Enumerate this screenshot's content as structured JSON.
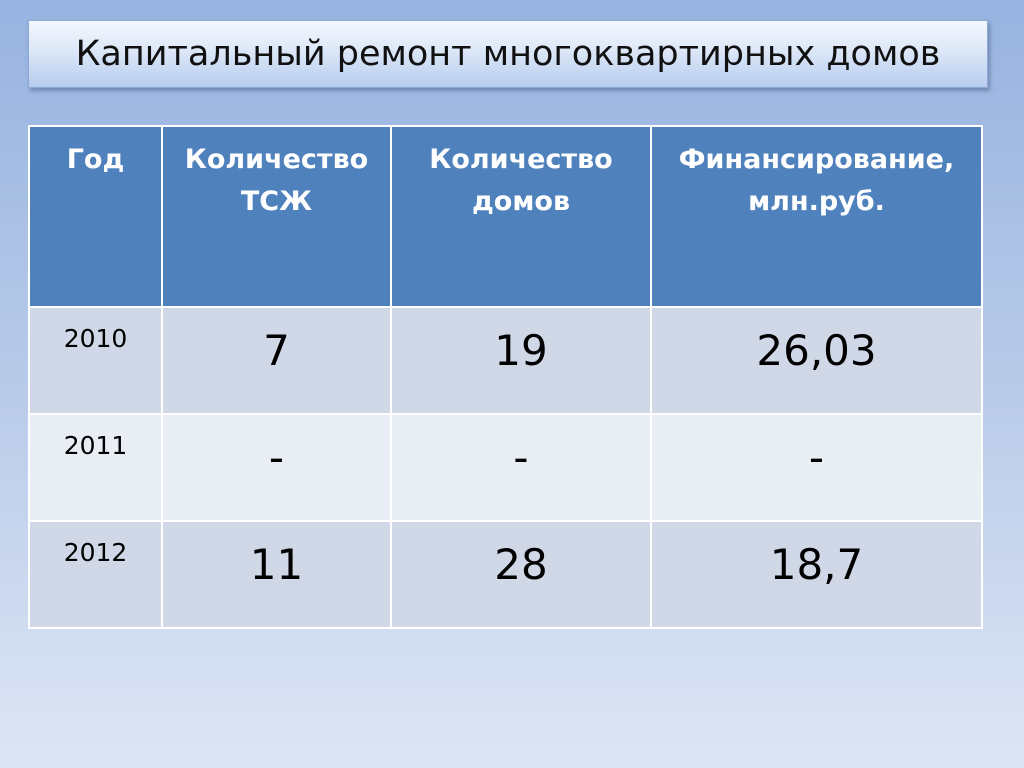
{
  "title": "Капитальный ремонт многоквартирных домов",
  "table": {
    "headers": [
      "Год",
      "Количество ТСЖ",
      "Количество домов",
      "Финансирование, млн.руб."
    ],
    "rows": [
      [
        "2010",
        "7",
        "19",
        "26,03"
      ],
      [
        "2011",
        "-",
        "-",
        "-"
      ],
      [
        "2012",
        "11",
        "28",
        "18,7"
      ]
    ]
  },
  "colors": {
    "header": "#4f81bd",
    "row_odd": "#d0d8e8",
    "row_even": "#e9edf4"
  }
}
